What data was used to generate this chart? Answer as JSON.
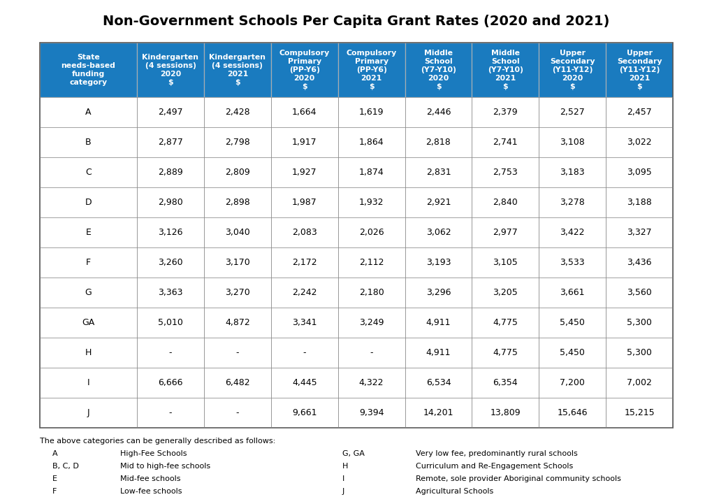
{
  "title": "Non-Government Schools Per Capita Grant Rates (2020 and 2021)",
  "header_bg_color": "#1a7bbf",
  "header_text_color": "#ffffff",
  "row_bg_color": "#ffffff",
  "row_text_color": "#000000",
  "border_color": "#aaaaaa",
  "col_header_lines": [
    [
      "State",
      "needs-based",
      "funding",
      "category"
    ],
    [
      "Kindergarten",
      "(4 sessions)",
      "2020",
      "$"
    ],
    [
      "Kindergarten",
      "(4 sessions)",
      "2021",
      "$"
    ],
    [
      "Compulsory",
      "Primary",
      "(PP-Y6)",
      "2020",
      "$"
    ],
    [
      "Compulsory",
      "Primary",
      "(PP-Y6)",
      "2021",
      "$"
    ],
    [
      "Middle",
      "School",
      "(Y7-Y10)",
      "2020",
      "$"
    ],
    [
      "Middle",
      "School",
      "(Y7-Y10)",
      "2021",
      "$"
    ],
    [
      "Upper",
      "Secondary",
      "(Y11-Y12)",
      "2020",
      "$"
    ],
    [
      "Upper",
      "Secondary",
      "(Y11-Y12)",
      "2021",
      "$"
    ]
  ],
  "rows": [
    [
      "A",
      "2,497",
      "2,428",
      "1,664",
      "1,619",
      "2,446",
      "2,379",
      "2,527",
      "2,457"
    ],
    [
      "B",
      "2,877",
      "2,798",
      "1,917",
      "1,864",
      "2,818",
      "2,741",
      "3,108",
      "3,022"
    ],
    [
      "C",
      "2,889",
      "2,809",
      "1,927",
      "1,874",
      "2,831",
      "2,753",
      "3,183",
      "3,095"
    ],
    [
      "D",
      "2,980",
      "2,898",
      "1,987",
      "1,932",
      "2,921",
      "2,840",
      "3,278",
      "3,188"
    ],
    [
      "E",
      "3,126",
      "3,040",
      "2,083",
      "2,026",
      "3,062",
      "2,977",
      "3,422",
      "3,327"
    ],
    [
      "F",
      "3,260",
      "3,170",
      "2,172",
      "2,112",
      "3,193",
      "3,105",
      "3,533",
      "3,436"
    ],
    [
      "G",
      "3,363",
      "3,270",
      "2,242",
      "2,180",
      "3,296",
      "3,205",
      "3,661",
      "3,560"
    ],
    [
      "GA",
      "5,010",
      "4,872",
      "3,341",
      "3,249",
      "4,911",
      "4,775",
      "5,450",
      "5,300"
    ],
    [
      "H",
      "-",
      "-",
      "-",
      "-",
      "4,911",
      "4,775",
      "5,450",
      "5,300"
    ],
    [
      "I",
      "6,666",
      "6,482",
      "4,445",
      "4,322",
      "6,534",
      "6,354",
      "7,200",
      "7,002"
    ],
    [
      "J",
      "-",
      "-",
      "9,661",
      "9,394",
      "14,201",
      "13,809",
      "15,646",
      "15,215"
    ]
  ],
  "footer_intro": "The above categories can be generally described as follows:",
  "footer_items": [
    [
      "A",
      "High-Fee Schools",
      "G, GA",
      "Very low fee, predominantly rural schools"
    ],
    [
      "B, C, D",
      "Mid to high-fee schools",
      "H",
      "Curriculum and Re-Engagement Schools"
    ],
    [
      "E",
      "Mid-fee schools",
      "I",
      "Remote, sole provider Aboriginal community schools"
    ],
    [
      "F",
      "Low-fee schools",
      "J",
      "Agricultural Schools"
    ]
  ],
  "title_fontsize": 14,
  "header_fontsize": 7.8,
  "cell_fontsize": 9,
  "footer_fontsize": 8
}
